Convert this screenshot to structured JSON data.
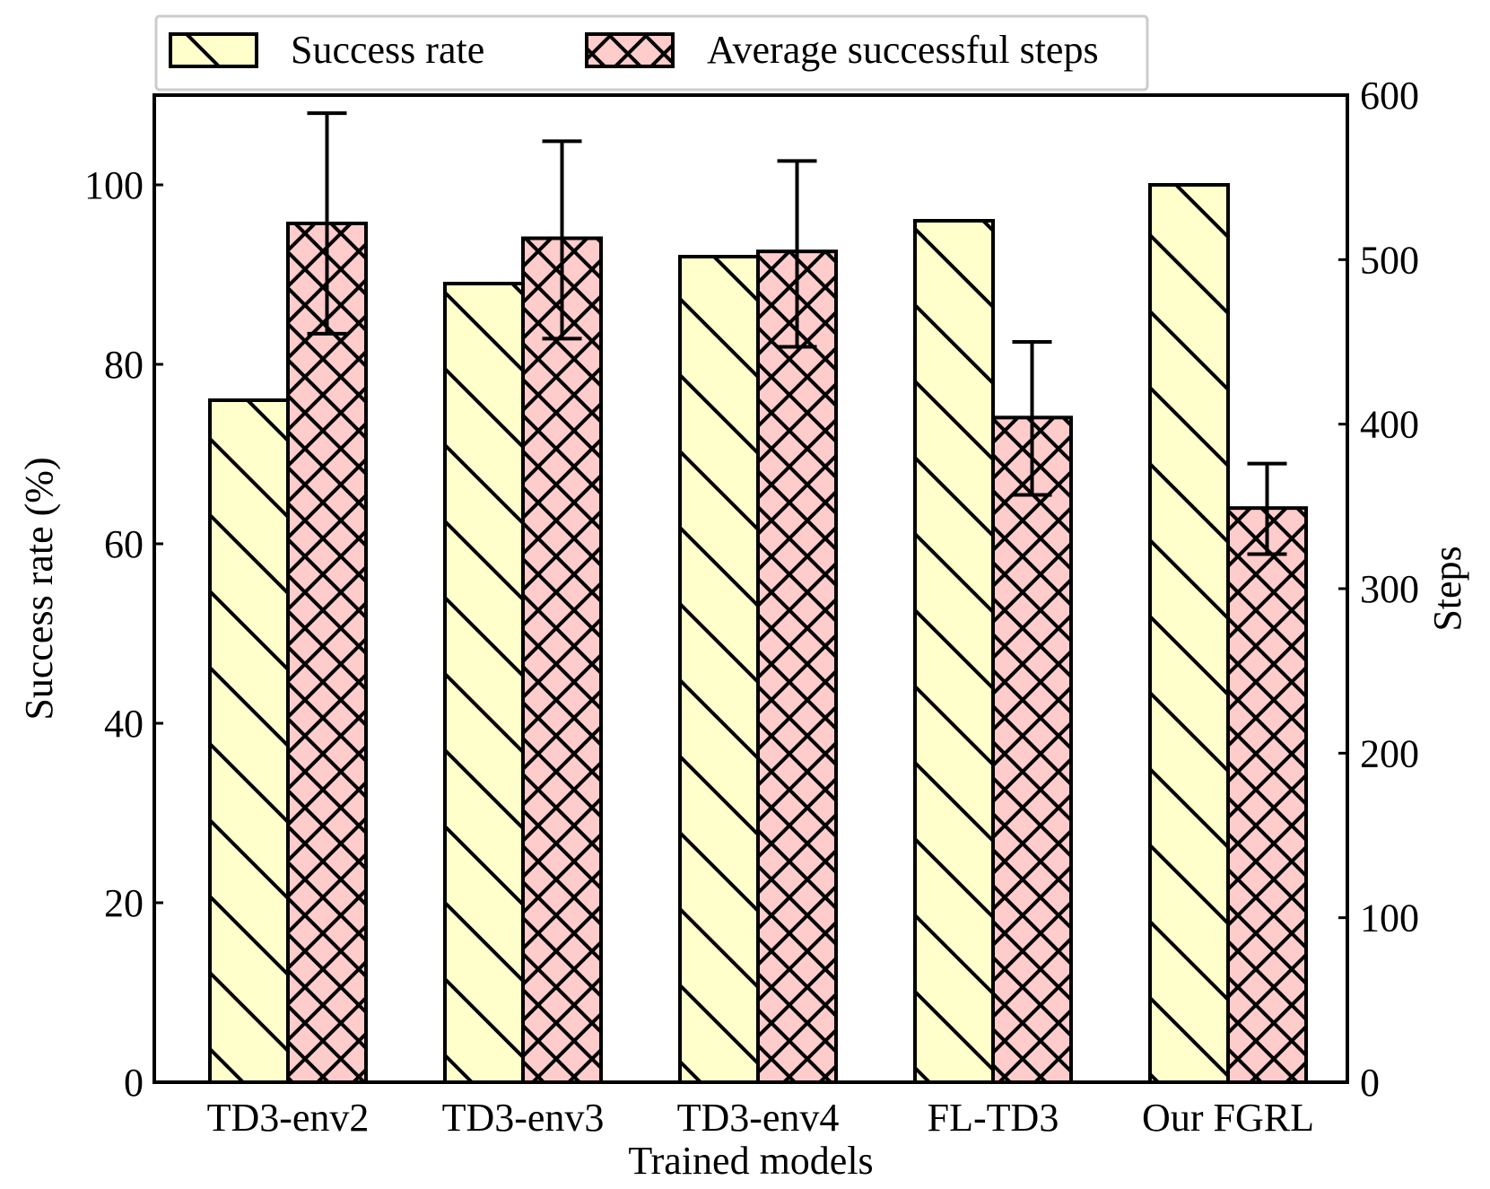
{
  "colors": {
    "success_fill": "#ffffcc",
    "steps_fill": "#ffcccc",
    "stroke": "#000000",
    "legend_border": "#cccccc"
  },
  "chart_data": {
    "type": "bar",
    "title": "",
    "xlabel": "Trained models",
    "ylabel": "Success rate (%)",
    "y2label": "Steps",
    "categories": [
      "TD3-env2",
      "TD3-env3",
      "TD3-env4",
      "FL-TD3",
      "Our FGRL"
    ],
    "ylim": [
      0,
      110
    ],
    "y2lim": [
      0,
      600
    ],
    "yticks": [
      "0",
      "20",
      "40",
      "60",
      "80",
      "100"
    ],
    "y2ticks": [
      "0",
      "100",
      "200",
      "300",
      "400",
      "500",
      "600"
    ],
    "legend_position": "top",
    "series": [
      {
        "name": "Success rate",
        "axis": "left",
        "hatch": "diagonal",
        "values": [
          76,
          89,
          92,
          96,
          100
        ]
      },
      {
        "name": "Average successful steps",
        "axis": "right",
        "hatch": "crosshatch",
        "values": [
          522,
          513,
          505,
          404,
          349
        ],
        "error_low": [
          455,
          452,
          447,
          357,
          321
        ],
        "error_high": [
          589,
          572,
          560,
          450,
          376
        ]
      }
    ]
  }
}
